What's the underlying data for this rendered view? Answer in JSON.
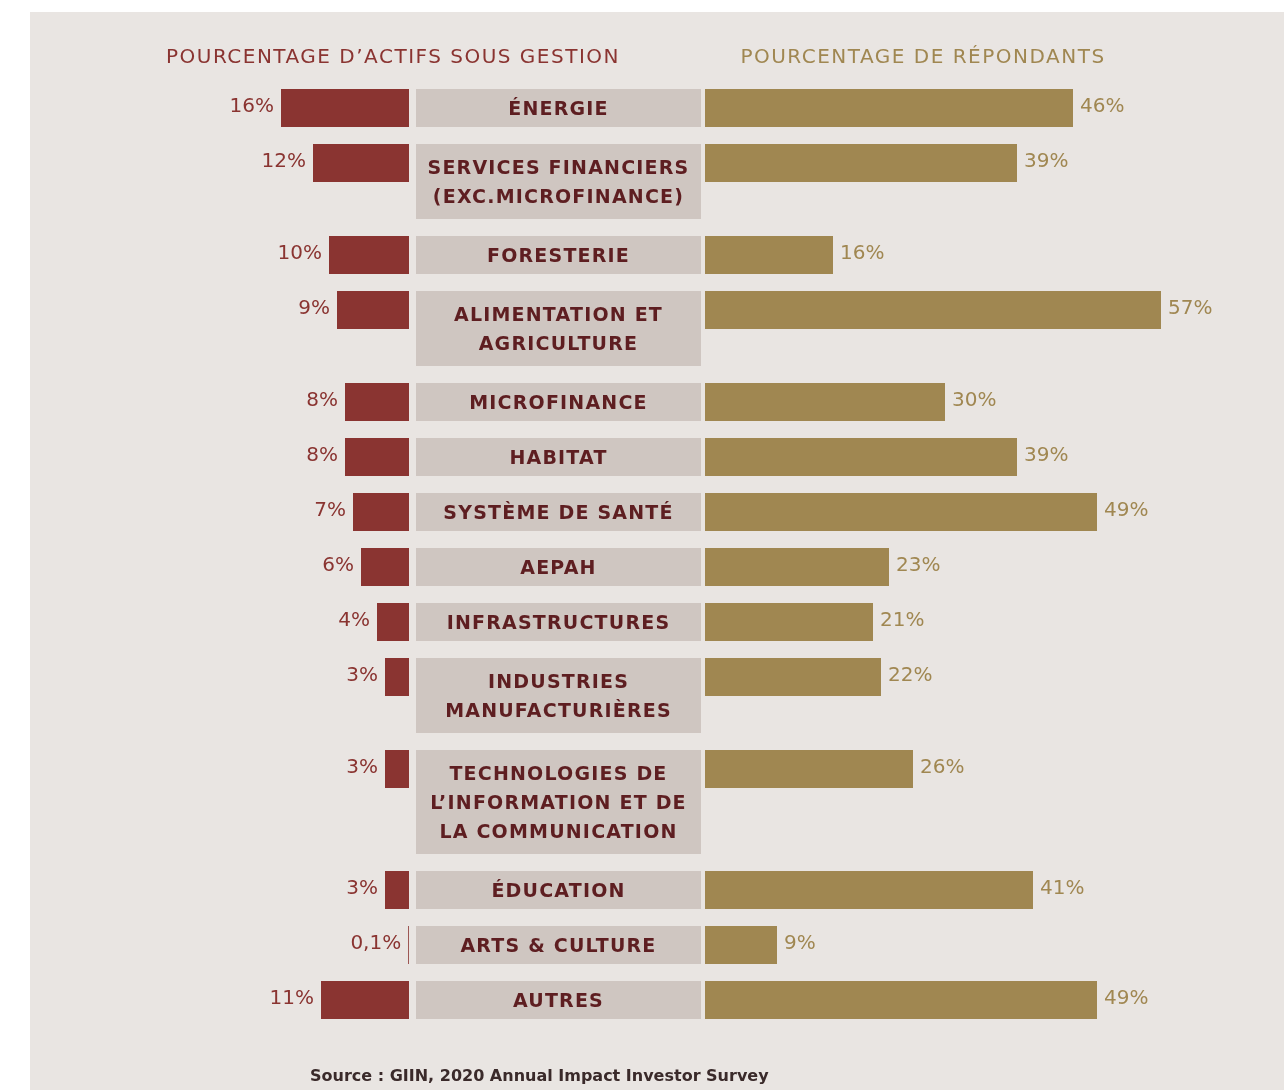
{
  "chart_data": [
    {
      "type": "bar",
      "orientation": "horizontal",
      "title": "POURCENTAGE D’ACTIFS SOUS GESTION",
      "categories": [
        "ÉNERGIE",
        "SERVICES FINANCIERS (EXC.MICROFINANCE)",
        "FORESTERIE",
        "ALIMENTATION ET AGRICULTURE",
        "MICROFINANCE",
        "HABITAT",
        "SYSTÈME DE SANTÉ",
        "AEPAH",
        "INFRASTRUCTURES",
        "INDUSTRIES MANUFACTURIÈRES",
        "TECHNOLOGIES DE L’INFORMATION ET DE LA COMMUNICATION",
        "ÉDUCATION",
        "ARTS & CULTURE",
        "AUTRES"
      ],
      "values": [
        16,
        12,
        10,
        9,
        8,
        8,
        7,
        6,
        4,
        3,
        3,
        3,
        0.1,
        11
      ],
      "value_labels": [
        "16%",
        "12%",
        "10%",
        "9%",
        "8%",
        "8%",
        "7%",
        "6%",
        "4%",
        "3%",
        "3%",
        "3%",
        "0,1%",
        "11%"
      ],
      "color": "#8a3431",
      "annotations": [
        "Source : GIIN, 2020 Annual Impact Investor Survey"
      ]
    },
    {
      "type": "bar",
      "orientation": "horizontal",
      "title": "POURCENTAGE DE RÉPONDANTS",
      "categories": [
        "ÉNERGIE",
        "SERVICES FINANCIERS (EXC.MICROFINANCE)",
        "FORESTERIE",
        "ALIMENTATION ET AGRICULTURE",
        "MICROFINANCE",
        "HABITAT",
        "SYSTÈME DE SANTÉ",
        "AEPAH",
        "INFRASTRUCTURES",
        "INDUSTRIES MANUFACTURIÈRES",
        "TECHNOLOGIES DE L’INFORMATION ET DE LA COMMUNICATION",
        "ÉDUCATION",
        "ARTS & CULTURE",
        "AUTRES"
      ],
      "values": [
        46,
        39,
        16,
        57,
        30,
        39,
        49,
        23,
        21,
        22,
        26,
        41,
        9,
        49
      ],
      "value_labels": [
        "46%",
        "39%",
        "16%",
        "57%",
        "30%",
        "39%",
        "49%",
        "23%",
        "21%",
        "22%",
        "26%",
        "41%",
        "9%",
        "49%"
      ],
      "color": "#a08751",
      "tick_labels": false
    }
  ]
}
